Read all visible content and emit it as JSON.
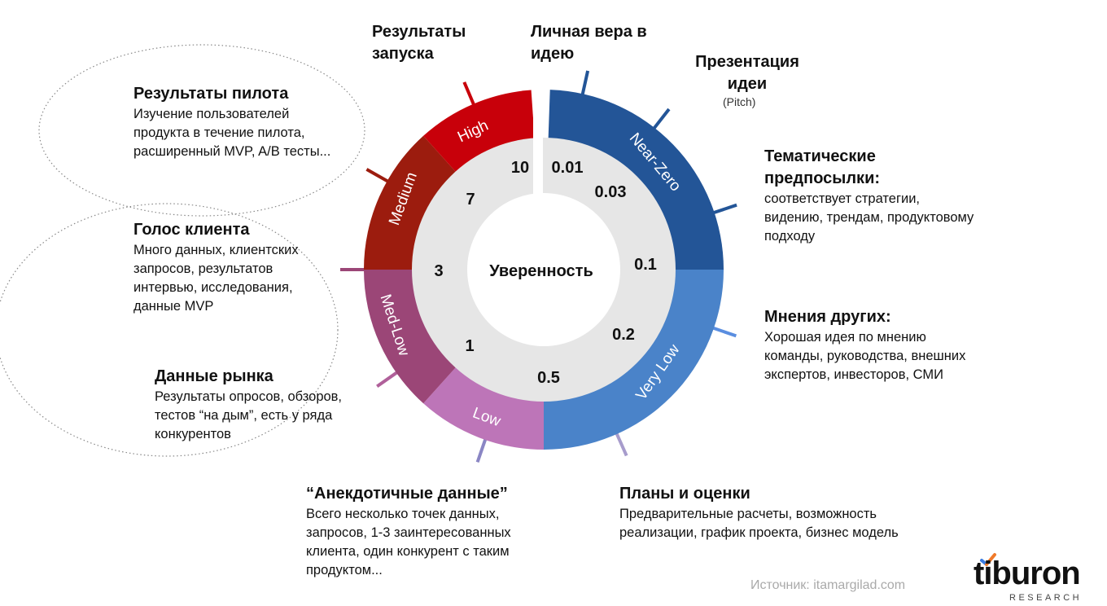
{
  "center_label": "Уверенность",
  "segments": [
    {
      "label": "Near-Zero",
      "color": "#235597"
    },
    {
      "label": "Very Low",
      "color": "#4a83c9"
    },
    {
      "label": "Low",
      "color": "#bd75b8"
    },
    {
      "label": "Med-Low",
      "color": "#9b4677"
    },
    {
      "label": "Medium",
      "color": "#9c1c0e"
    },
    {
      "label": "High",
      "color": "#c8000a"
    }
  ],
  "scale_values": [
    "0.01",
    "0.03",
    "0.1",
    "0.2",
    "0.5",
    "1",
    "3",
    "7",
    "10"
  ],
  "evidence": {
    "launch": {
      "title": "Результаты запуска"
    },
    "belief": {
      "title": "Личная вера в идею"
    },
    "pitch": {
      "title": "Презентация идеи",
      "sub": "(Pitch)"
    },
    "thematic": {
      "title": "Тематические предпосылки:",
      "text": "соответствует стратегии, видению, трендам, продуктовому подходу"
    },
    "others": {
      "title": "Мнения других:",
      "text": "Хорошая идея по мнению команды, руководства, внешних экспертов, инвесторов, СМИ"
    },
    "plans": {
      "title": "Планы и оценки",
      "text": "Предварительные расчеты, возможность реализации, график проекта, бизнес модель"
    },
    "anecdotal": {
      "title": "“Анекдотичные данные”",
      "text": "Всего несколько точек данных, запросов, 1-3 заинтересованных клиента, один конкурент с таким продуктом..."
    },
    "market": {
      "title": "Данные рынка",
      "text": "Результаты опросов, обзоров, тестов “на дым”, есть у ряда конкурентов"
    },
    "voice": {
      "title": "Голос клиента",
      "text": "Много данных, клиентских запросов, результатов интервью, исследования, данные MVP"
    },
    "pilot": {
      "title": "Результаты пилота",
      "text": "Изучение пользователей продукта в течение пилота, расширенный MVP, A/B тесты..."
    }
  },
  "source": "Источник: itamargilad.com",
  "logo": {
    "word": "tiburon",
    "sub": "RESEARCH"
  }
}
